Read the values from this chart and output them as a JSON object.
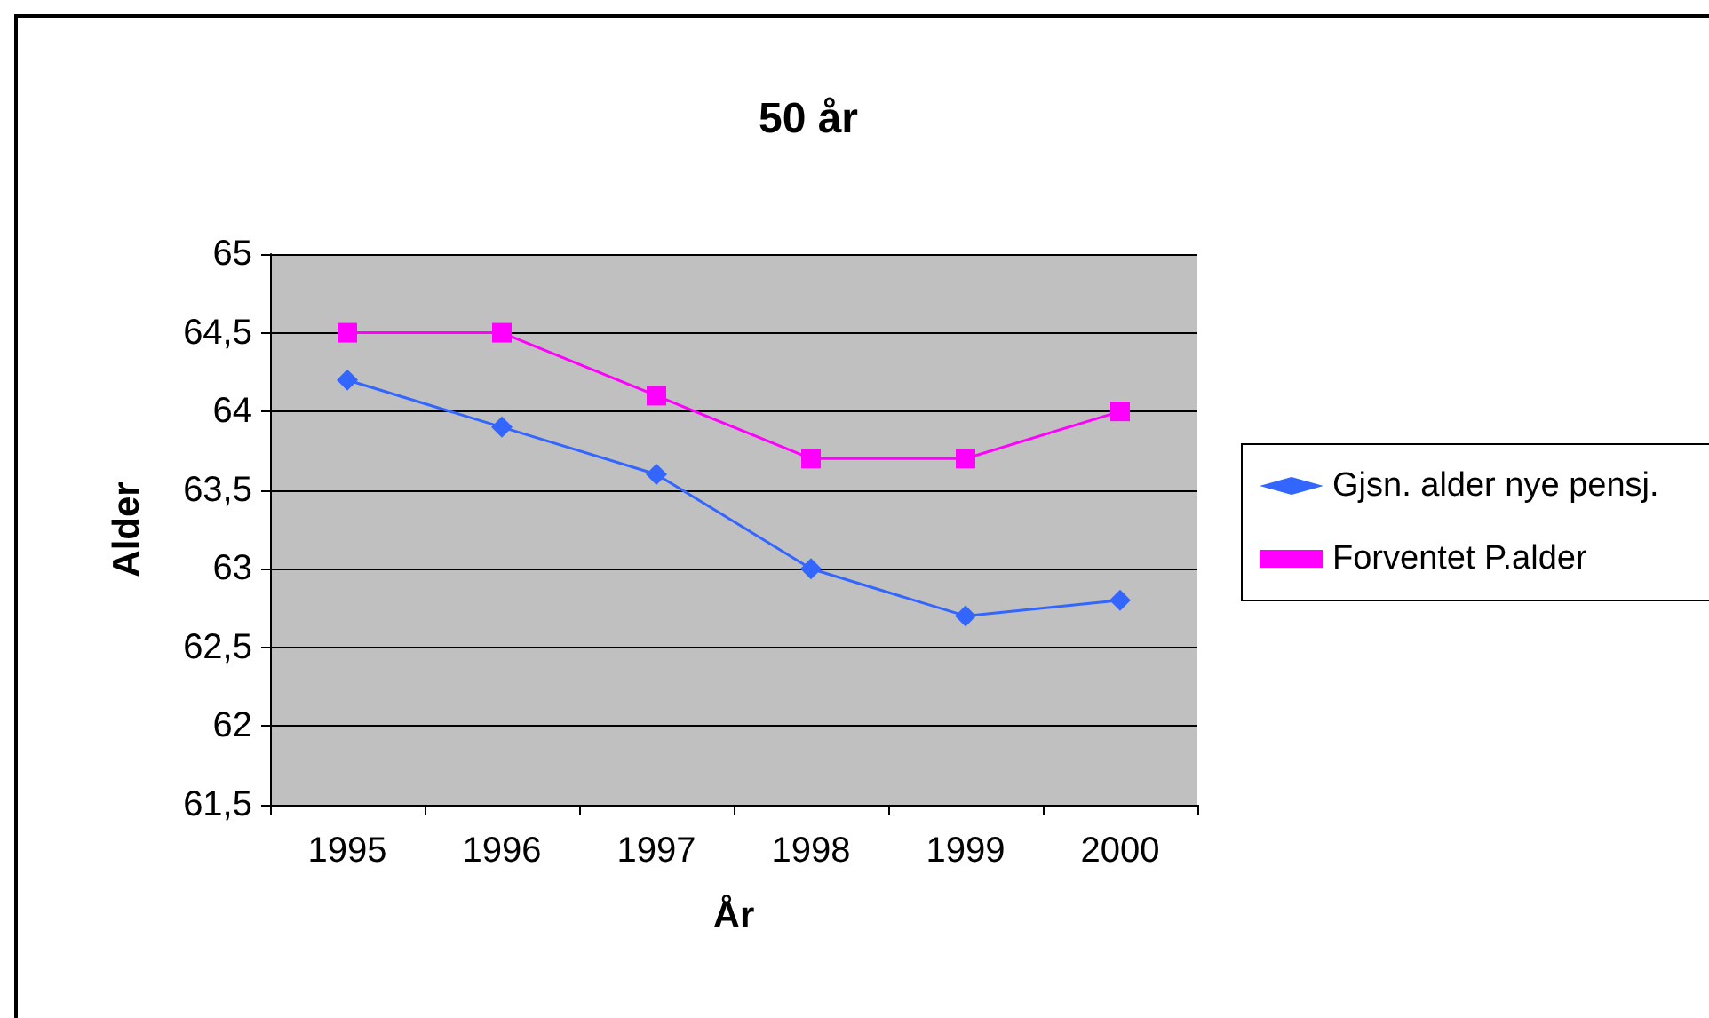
{
  "chart_data": {
    "type": "line",
    "title": "50 år",
    "xlabel": "År",
    "ylabel": "Alder",
    "categories": [
      "1995",
      "1996",
      "1997",
      "1998",
      "1999",
      "2000"
    ],
    "series": [
      {
        "name": "Gjsn. alder nye pensj.",
        "color": "#3366ff",
        "marker": "diamond",
        "values": [
          64.2,
          63.9,
          63.6,
          63.0,
          62.7,
          62.8
        ]
      },
      {
        "name": "Forventet P.alder",
        "color": "#ff00ff",
        "marker": "square",
        "values": [
          64.5,
          64.5,
          64.1,
          63.7,
          63.7,
          64.0
        ]
      }
    ],
    "ylim": [
      61.5,
      65
    ],
    "yticks": [
      {
        "value": 61.5,
        "label": "61,5"
      },
      {
        "value": 62,
        "label": "62"
      },
      {
        "value": 62.5,
        "label": "62,5"
      },
      {
        "value": 63,
        "label": "63"
      },
      {
        "value": 63.5,
        "label": "63,5"
      },
      {
        "value": 64,
        "label": "64"
      },
      {
        "value": 64.5,
        "label": "64,5"
      },
      {
        "value": 65,
        "label": "65"
      }
    ],
    "grid": "y",
    "legend": "right",
    "line_style": "solid"
  }
}
